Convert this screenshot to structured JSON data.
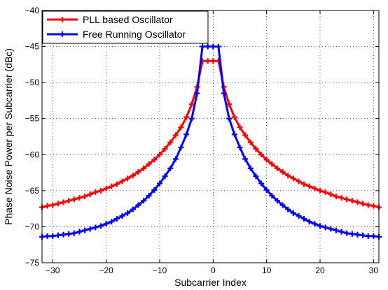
{
  "chart_data": {
    "type": "line",
    "title": "",
    "xlabel": "Subcarrier Index",
    "ylabel": "Phase Noise Power per Subcarrier (dBc)",
    "xlim": [
      -32,
      31
    ],
    "ylim": [
      -75,
      -40
    ],
    "xticks": [
      -30,
      -20,
      -10,
      0,
      10,
      20,
      30
    ],
    "yticks": [
      -75,
      -70,
      -65,
      -60,
      -55,
      -50,
      -45,
      -40
    ],
    "grid": true,
    "legend": "top-left",
    "series": [
      {
        "name": "PLL based Oscillator",
        "color": "#ff0000",
        "marker": "plus",
        "x": [
          -32,
          -31,
          -30,
          -29,
          -28,
          -27,
          -26,
          -25,
          -24,
          -23,
          -22,
          -21,
          -20,
          -19,
          -18,
          -17,
          -16,
          -15,
          -14,
          -13,
          -12,
          -11,
          -10,
          -9,
          -8,
          -7,
          -6,
          -5,
          -4,
          -3,
          -2,
          -1,
          0,
          1,
          2,
          3,
          4,
          5,
          6,
          7,
          8,
          9,
          10,
          11,
          12,
          13,
          14,
          15,
          16,
          17,
          18,
          19,
          20,
          21,
          22,
          23,
          24,
          25,
          26,
          27,
          28,
          29,
          30,
          31
        ],
        "y": [
          -67.3,
          -67.1,
          -67.0,
          -66.8,
          -66.6,
          -66.4,
          -66.2,
          -66.0,
          -65.8,
          -65.5,
          -65.2,
          -65.0,
          -64.7,
          -64.4,
          -64.1,
          -63.7,
          -63.3,
          -62.9,
          -62.4,
          -61.9,
          -61.3,
          -60.7,
          -60.0,
          -59.2,
          -58.3,
          -57.3,
          -56.2,
          -54.8,
          -53.0,
          -50.6,
          -47.0,
          -47.0,
          -47.0,
          -47.0,
          -50.6,
          -53.0,
          -54.8,
          -56.2,
          -57.3,
          -58.3,
          -59.2,
          -60.0,
          -60.7,
          -61.3,
          -61.9,
          -62.4,
          -62.9,
          -63.3,
          -63.7,
          -64.1,
          -64.4,
          -64.7,
          -65.0,
          -65.2,
          -65.5,
          -65.8,
          -66.0,
          -66.2,
          -66.4,
          -66.6,
          -66.8,
          -67.0,
          -67.1,
          -67.3
        ]
      },
      {
        "name": "Free Running Oscillator",
        "color": "#0000ff",
        "marker": "plus",
        "x": [
          -32,
          -31,
          -30,
          -29,
          -28,
          -27,
          -26,
          -25,
          -24,
          -23,
          -22,
          -21,
          -20,
          -19,
          -18,
          -17,
          -16,
          -15,
          -14,
          -13,
          -12,
          -11,
          -10,
          -9,
          -8,
          -7,
          -6,
          -5,
          -4,
          -3,
          -2,
          -1,
          0,
          1,
          2,
          3,
          4,
          5,
          6,
          7,
          8,
          9,
          10,
          11,
          12,
          13,
          14,
          15,
          16,
          17,
          18,
          19,
          20,
          21,
          22,
          23,
          24,
          25,
          26,
          27,
          28,
          29,
          30,
          31
        ],
        "y": [
          -71.4,
          -71.3,
          -71.3,
          -71.2,
          -71.1,
          -71.0,
          -70.9,
          -70.7,
          -70.5,
          -70.3,
          -70.1,
          -69.9,
          -69.6,
          -69.3,
          -68.9,
          -68.5,
          -68.1,
          -67.6,
          -67.0,
          -66.4,
          -65.7,
          -64.9,
          -64.0,
          -63.0,
          -61.9,
          -60.6,
          -59.0,
          -57.2,
          -55.0,
          -51.5,
          -45.0,
          -45.0,
          -45.0,
          -45.0,
          -51.5,
          -55.0,
          -57.2,
          -59.0,
          -60.6,
          -61.9,
          -63.0,
          -64.0,
          -64.9,
          -65.7,
          -66.4,
          -67.0,
          -67.6,
          -68.1,
          -68.5,
          -68.9,
          -69.3,
          -69.6,
          -69.9,
          -70.1,
          -70.3,
          -70.5,
          -70.7,
          -70.9,
          -71.0,
          -71.1,
          -71.2,
          -71.3,
          -71.3,
          -71.4
        ]
      }
    ]
  }
}
